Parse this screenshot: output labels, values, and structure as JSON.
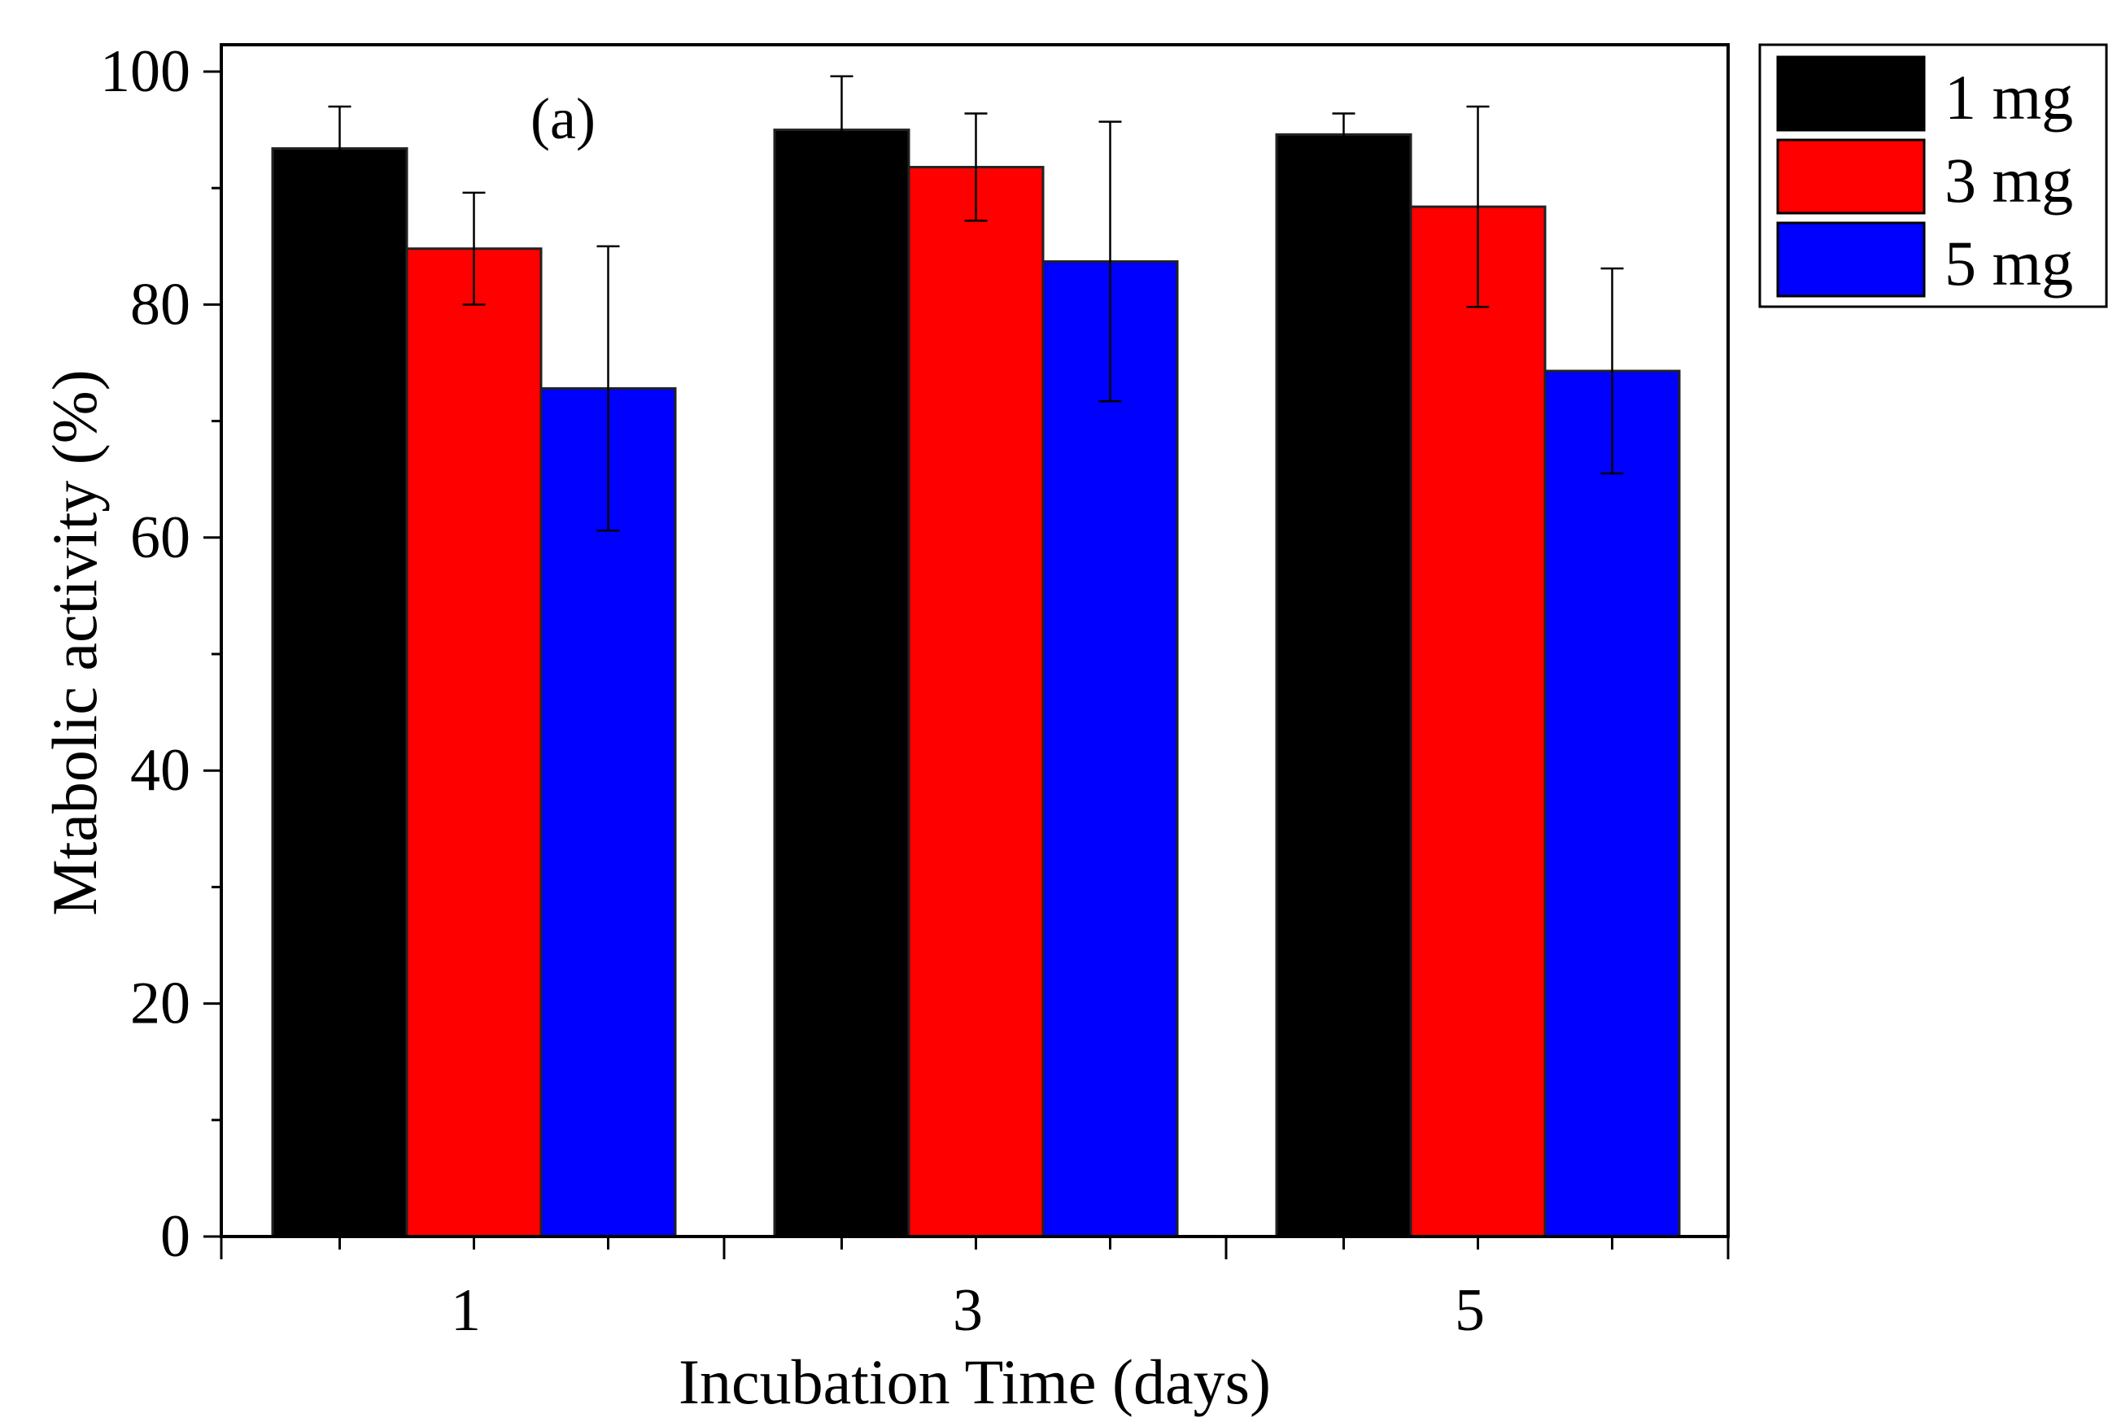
{
  "chart_data": {
    "type": "bar",
    "title": "",
    "annotation": "(a)",
    "xlabel": "Incubation Time (days)",
    "ylabel": "Mtabolic activity (%)",
    "categories": [
      "1",
      "3",
      "5"
    ],
    "ylim": [
      0,
      100
    ],
    "yticks": [
      "0",
      "20",
      "40",
      "60",
      "80",
      "100"
    ],
    "grid": false,
    "legend_position": "outside-top-right",
    "series": [
      {
        "name": "1 mg",
        "color": "#000000",
        "values": [
          93.4,
          95.0,
          94.6
        ],
        "errors": [
          3.6,
          4.6,
          1.8
        ]
      },
      {
        "name": "3 mg",
        "color": "#ff0000",
        "values": [
          84.8,
          91.8,
          88.4
        ],
        "errors": [
          4.8,
          4.6,
          8.6
        ]
      },
      {
        "name": "5 mg",
        "color": "#0000ff",
        "values": [
          72.8,
          83.7,
          74.3
        ],
        "errors": [
          12.2,
          12.0,
          8.8
        ]
      }
    ]
  }
}
